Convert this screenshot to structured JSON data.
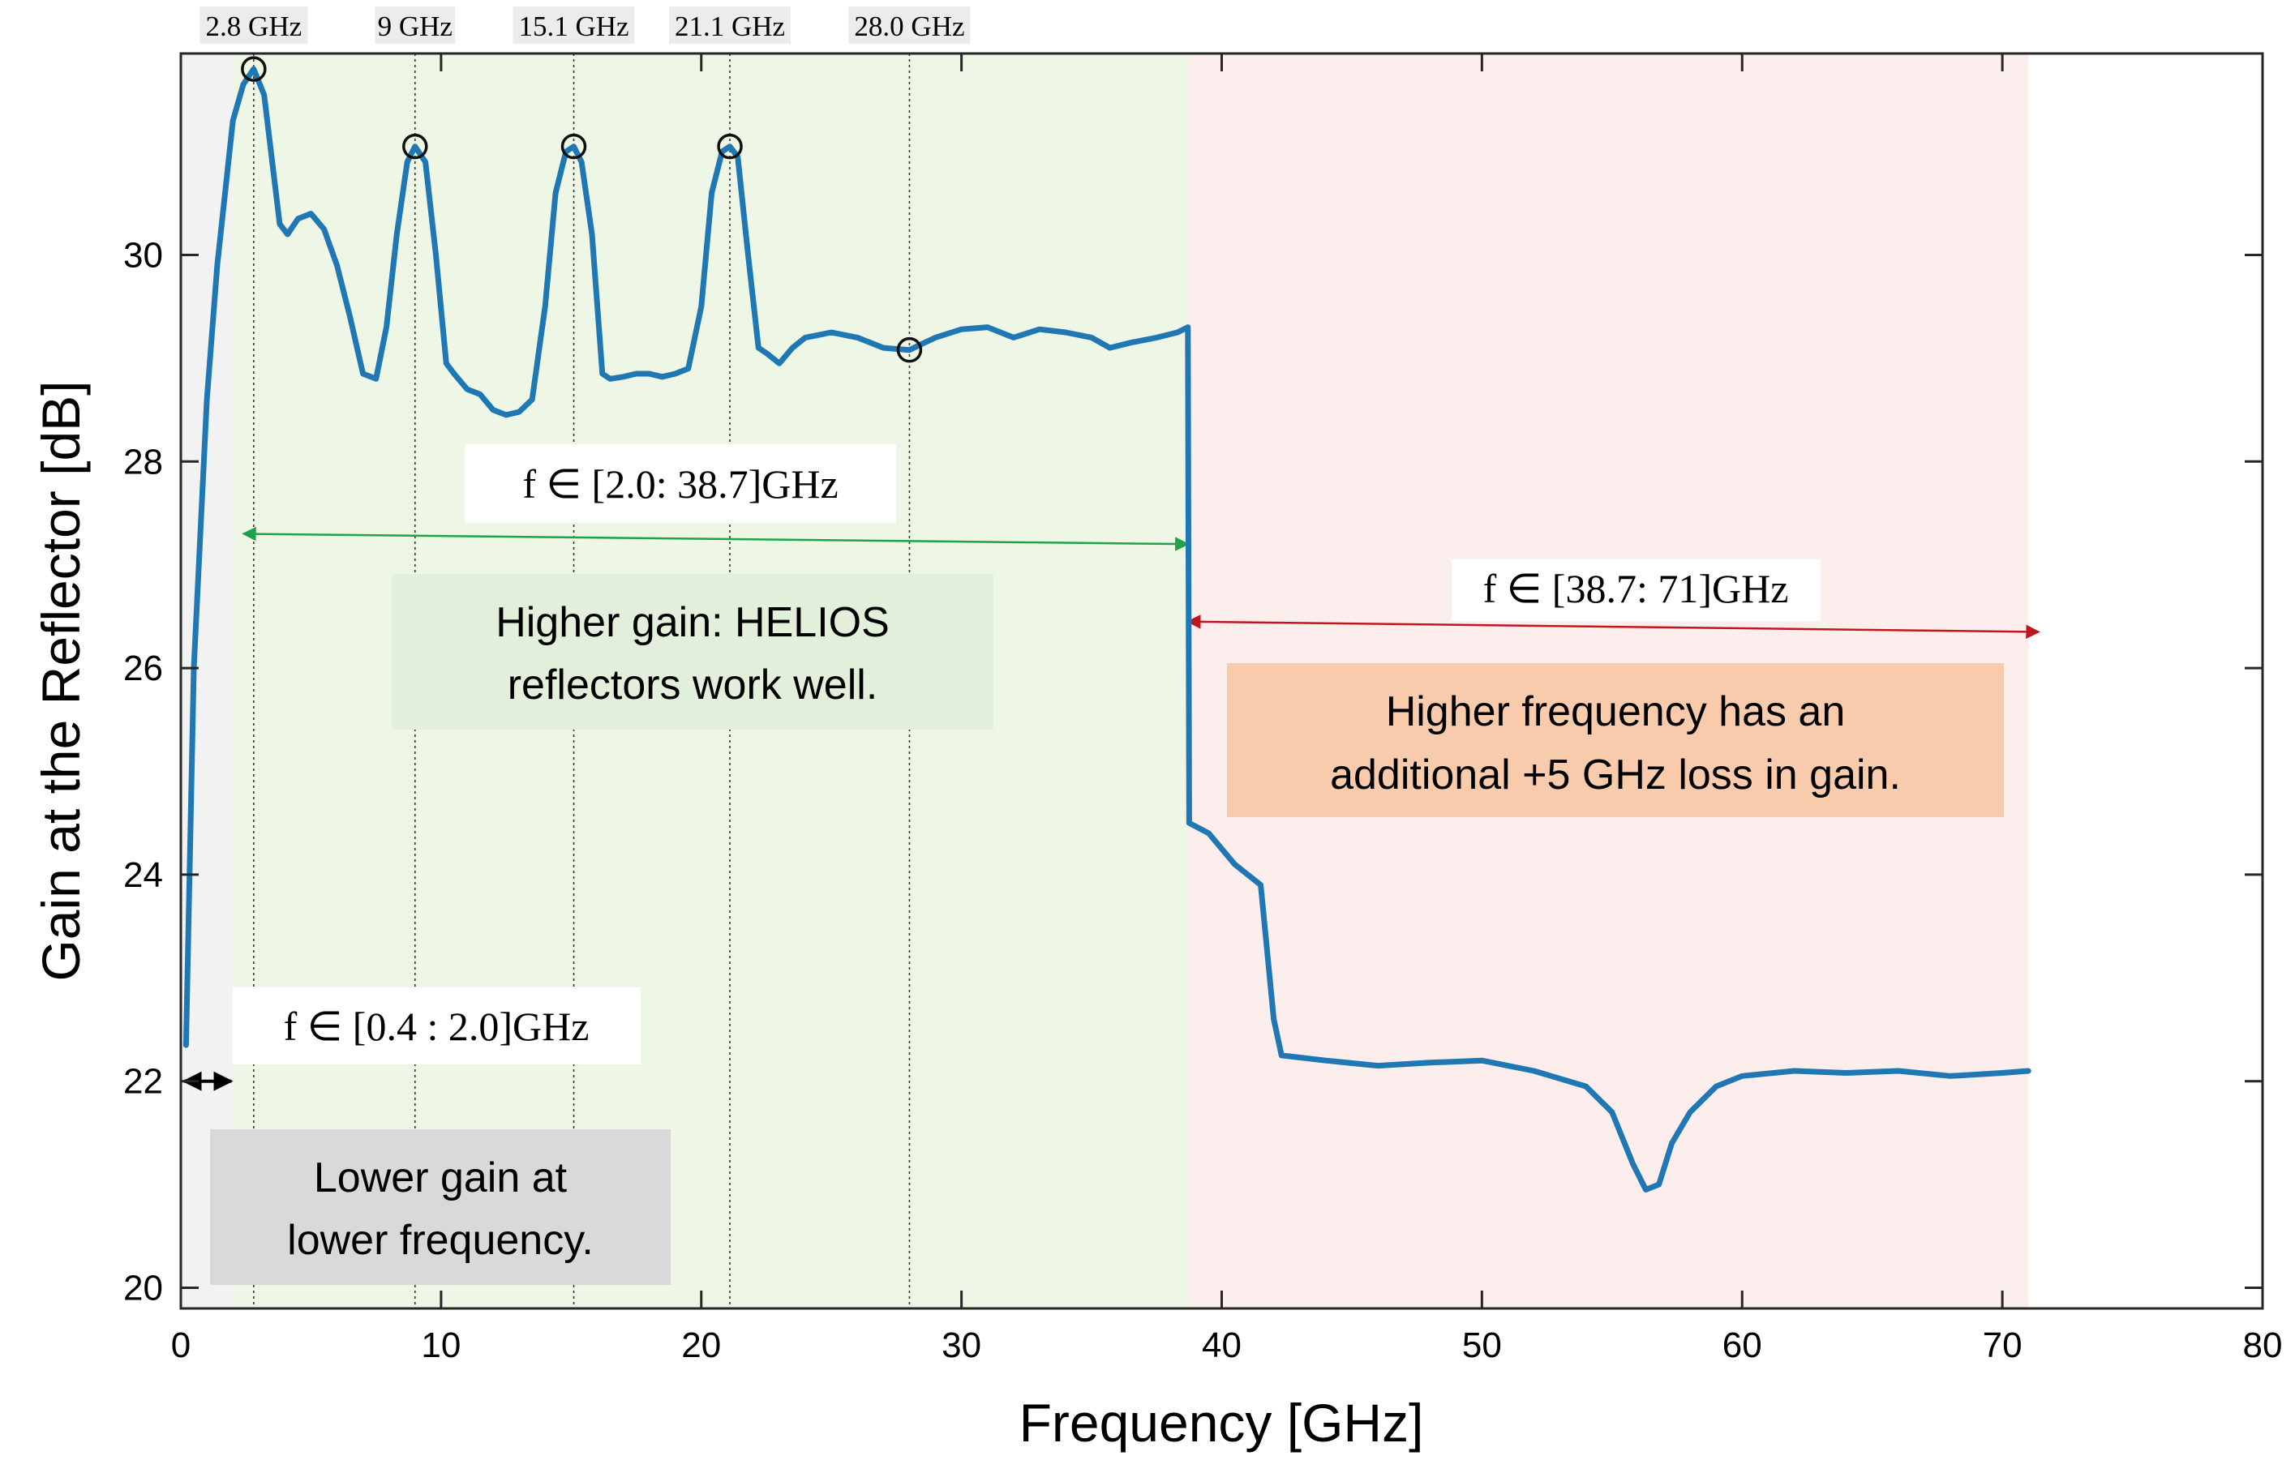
{
  "chart_data": {
    "type": "line",
    "xlabel": "Frequency [GHz]",
    "ylabel": "Gain at the Reflector [dB]",
    "xlim": [
      0,
      80
    ],
    "ylim": [
      19.8,
      31.95
    ],
    "xticks": [
      0,
      10,
      20,
      30,
      40,
      50,
      60,
      70,
      80
    ],
    "yticks": [
      20,
      22,
      24,
      26,
      28,
      30
    ],
    "grid": false,
    "series": [
      {
        "color": "#1f77b4",
        "x": [
          0.2,
          0.5,
          1.0,
          1.4,
          2.0,
          2.4,
          2.8,
          3.2,
          3.8,
          4.1,
          4.5,
          5.0,
          5.5,
          6.0,
          6.5,
          7.0,
          7.5,
          7.9,
          8.3,
          8.7,
          9.0,
          9.4,
          9.8,
          10.2,
          10.5,
          11.0,
          11.5,
          12.0,
          12.5,
          13.0,
          13.5,
          14.0,
          14.4,
          14.8,
          15.1,
          15.4,
          15.8,
          16.2,
          16.5,
          17.0,
          17.5,
          18.0,
          18.5,
          19.0,
          19.5,
          20.0,
          20.4,
          20.8,
          21.1,
          21.4,
          21.8,
          22.2,
          22.5,
          23.0,
          23.5,
          24.0,
          25.0,
          26.0,
          27.0,
          28.0,
          29.0,
          30.0,
          31.0,
          32.0,
          33.0,
          34.0,
          35.0,
          35.7,
          36.5,
          37.5,
          38.3,
          38.7,
          38.75,
          39.5,
          40.5,
          41.5,
          42.0,
          42.3,
          44.0,
          46.0,
          48.0,
          50.0,
          52.0,
          54.0,
          55.0,
          55.8,
          56.3,
          56.8,
          57.3,
          58.0,
          59.0,
          60.0,
          62.0,
          64.0,
          66.0,
          68.0,
          70.0,
          71.0
        ],
        "values": [
          22.35,
          26.0,
          28.6,
          29.9,
          31.3,
          31.65,
          31.8,
          31.55,
          30.3,
          30.2,
          30.35,
          30.4,
          30.25,
          29.9,
          29.4,
          28.85,
          28.8,
          29.3,
          30.2,
          30.9,
          31.05,
          30.9,
          30.0,
          28.95,
          28.85,
          28.7,
          28.65,
          28.5,
          28.45,
          28.48,
          28.6,
          29.5,
          30.6,
          31.0,
          31.05,
          30.9,
          30.2,
          28.85,
          28.8,
          28.82,
          28.85,
          28.85,
          28.82,
          28.85,
          28.9,
          29.5,
          30.6,
          31.0,
          31.05,
          30.95,
          30.0,
          29.1,
          29.05,
          28.95,
          29.1,
          29.2,
          29.25,
          29.2,
          29.1,
          29.08,
          29.2,
          29.28,
          29.3,
          29.2,
          29.28,
          29.25,
          29.2,
          29.1,
          29.15,
          29.2,
          29.25,
          29.3,
          24.5,
          24.4,
          24.1,
          23.9,
          22.6,
          22.25,
          22.2,
          22.15,
          22.18,
          22.2,
          22.1,
          21.95,
          21.7,
          21.2,
          20.95,
          21.0,
          21.4,
          21.7,
          21.95,
          22.05,
          22.1,
          22.08,
          22.1,
          22.05,
          22.08,
          22.1
        ]
      }
    ],
    "markers": [
      {
        "x": 2.8,
        "y": 31.8
      },
      {
        "x": 9.0,
        "y": 31.05
      },
      {
        "x": 15.1,
        "y": 31.05
      },
      {
        "x": 21.1,
        "y": 31.05
      },
      {
        "x": 28.0,
        "y": 29.08
      }
    ],
    "vlines": [
      2.8,
      9.0,
      15.1,
      21.1,
      28.0
    ],
    "regions": [
      {
        "x0": 0,
        "x1": 2.0,
        "color": "#f2f2f2"
      },
      {
        "x0": 2.0,
        "x1": 38.7,
        "color": "#eef6e6"
      },
      {
        "x0": 38.7,
        "x1": 71.0,
        "color": "#fdeeee"
      }
    ],
    "top_labels": [
      "2.8 GHz",
      "9 GHz",
      "15.1 GHz",
      "21.1 GHz",
      "28.0 GHz"
    ],
    "ranges": [
      {
        "label": "f ∈ [0.4 : 2.0]GHz",
        "x0": 0,
        "x1": 2.0,
        "y": 22.0,
        "color": "#000000"
      },
      {
        "label": "f ∈ [2.0: 38.7]GHz",
        "x0": 2.4,
        "x1": 38.7,
        "y0": 27.3,
        "y1": 27.2,
        "color": "#1fa34a"
      },
      {
        "label": "f ∈ [38.7: 71]GHz",
        "x0": 38.7,
        "x1": 71.4,
        "y0": 26.45,
        "y1": 26.35,
        "color": "#c0161f"
      }
    ],
    "annotations": [
      {
        "lines": [
          "Higher gain: HELIOS",
          "reflectors work well."
        ],
        "box_color": "#e2efda"
      },
      {
        "lines": [
          "Higher frequency has an",
          "additional +5 GHz loss in gain."
        ],
        "box_color": "#f8cbad"
      },
      {
        "lines": [
          "Lower gain at",
          "lower frequency."
        ],
        "box_color": "#d9d9d9"
      }
    ]
  }
}
